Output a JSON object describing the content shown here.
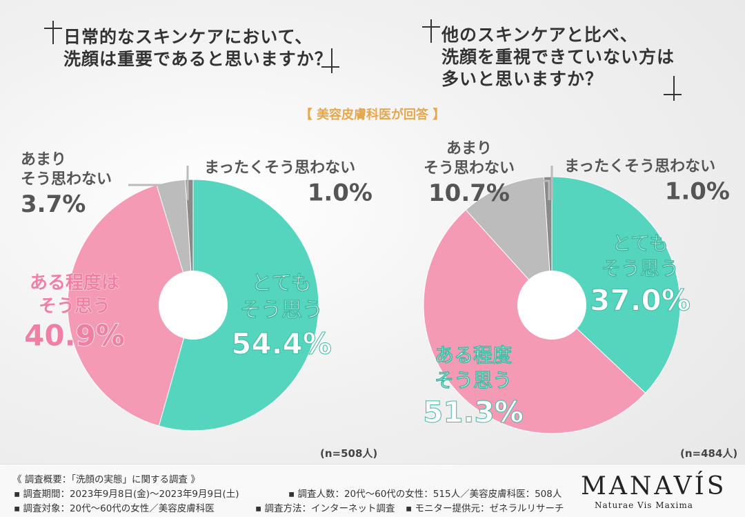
{
  "questions": {
    "left_line1": "日常的なスキンケアにおいて、",
    "left_line2": "洗顔は重要であると思いますか？",
    "right_line1": "他のスキンケアと比べ、",
    "right_line2": "洗顔を重視できていない方は",
    "right_line3": "多いと思いますか？"
  },
  "tagline": "【 美容皮膚科医が回答 】",
  "colors": {
    "teal": "#55d5bd",
    "pink": "#f49ab5",
    "gray": "#bcbcbc",
    "darkgray": "#8a8a8a",
    "label_gray": "#555555"
  },
  "chart_data": [
    {
      "type": "pie",
      "n_label": "(n=508人)",
      "slices": [
        {
          "name_lines": [
            "とても",
            "そう思う"
          ],
          "value": 54.4,
          "label": "54.4%",
          "color": "#55d5bd",
          "text_color": "#ffffff"
        },
        {
          "name_lines": [
            "ある程度は",
            "そう思う"
          ],
          "value": 40.9,
          "label": "40.9%",
          "color": "#f49ab5",
          "text_color": "#f07fa4"
        },
        {
          "name_lines": [
            "あまり",
            "そう思わない"
          ],
          "value": 3.7,
          "label": "3.7%",
          "color": "#bcbcbc",
          "text_color": "#555555"
        },
        {
          "name_lines": [
            "まったくそう思わない"
          ],
          "value": 1.0,
          "label": "1.0%",
          "color": "#8a8a8a",
          "text_color": "#555555"
        }
      ]
    },
    {
      "type": "pie",
      "n_label": "(n=484人)",
      "slices": [
        {
          "name_lines": [
            "とても",
            "そう思う"
          ],
          "value": 37.0,
          "label": "37.0%",
          "color": "#55d5bd",
          "text_color": "#ffffff"
        },
        {
          "name_lines": [
            "ある程度",
            "そう思う"
          ],
          "value": 51.3,
          "label": "51.3%",
          "color": "#f49ab5",
          "text_color": "#ffffff"
        },
        {
          "name_lines": [
            "あまり",
            "そう思わない"
          ],
          "value": 10.7,
          "label": "10.7%",
          "color": "#bcbcbc",
          "text_color": "#555555"
        },
        {
          "name_lines": [
            "まったくそう思わない"
          ],
          "value": 1.0,
          "label": "1.0%",
          "color": "#8a8a8a",
          "text_color": "#555555"
        }
      ]
    }
  ],
  "footer": {
    "title": "《 調査概要：「洗顔の実態」に関する調査 》",
    "period": "▪ 調査期間：2023年9月8日(金)〜2023年9月9日(土)",
    "count": "▪ 調査人数：20代〜60代の女性：515人／美容皮膚科医：508人",
    "target": "▪ 調査対象：20代〜60代の女性／美容皮膚科医",
    "method": "▪ 調査方法：インターネット調査",
    "provider": "▪ モニター提供元：ゼネラルリサーチ"
  },
  "brand": {
    "name": "MANAVÍS",
    "sub": "Naturae Vis Maxima"
  }
}
